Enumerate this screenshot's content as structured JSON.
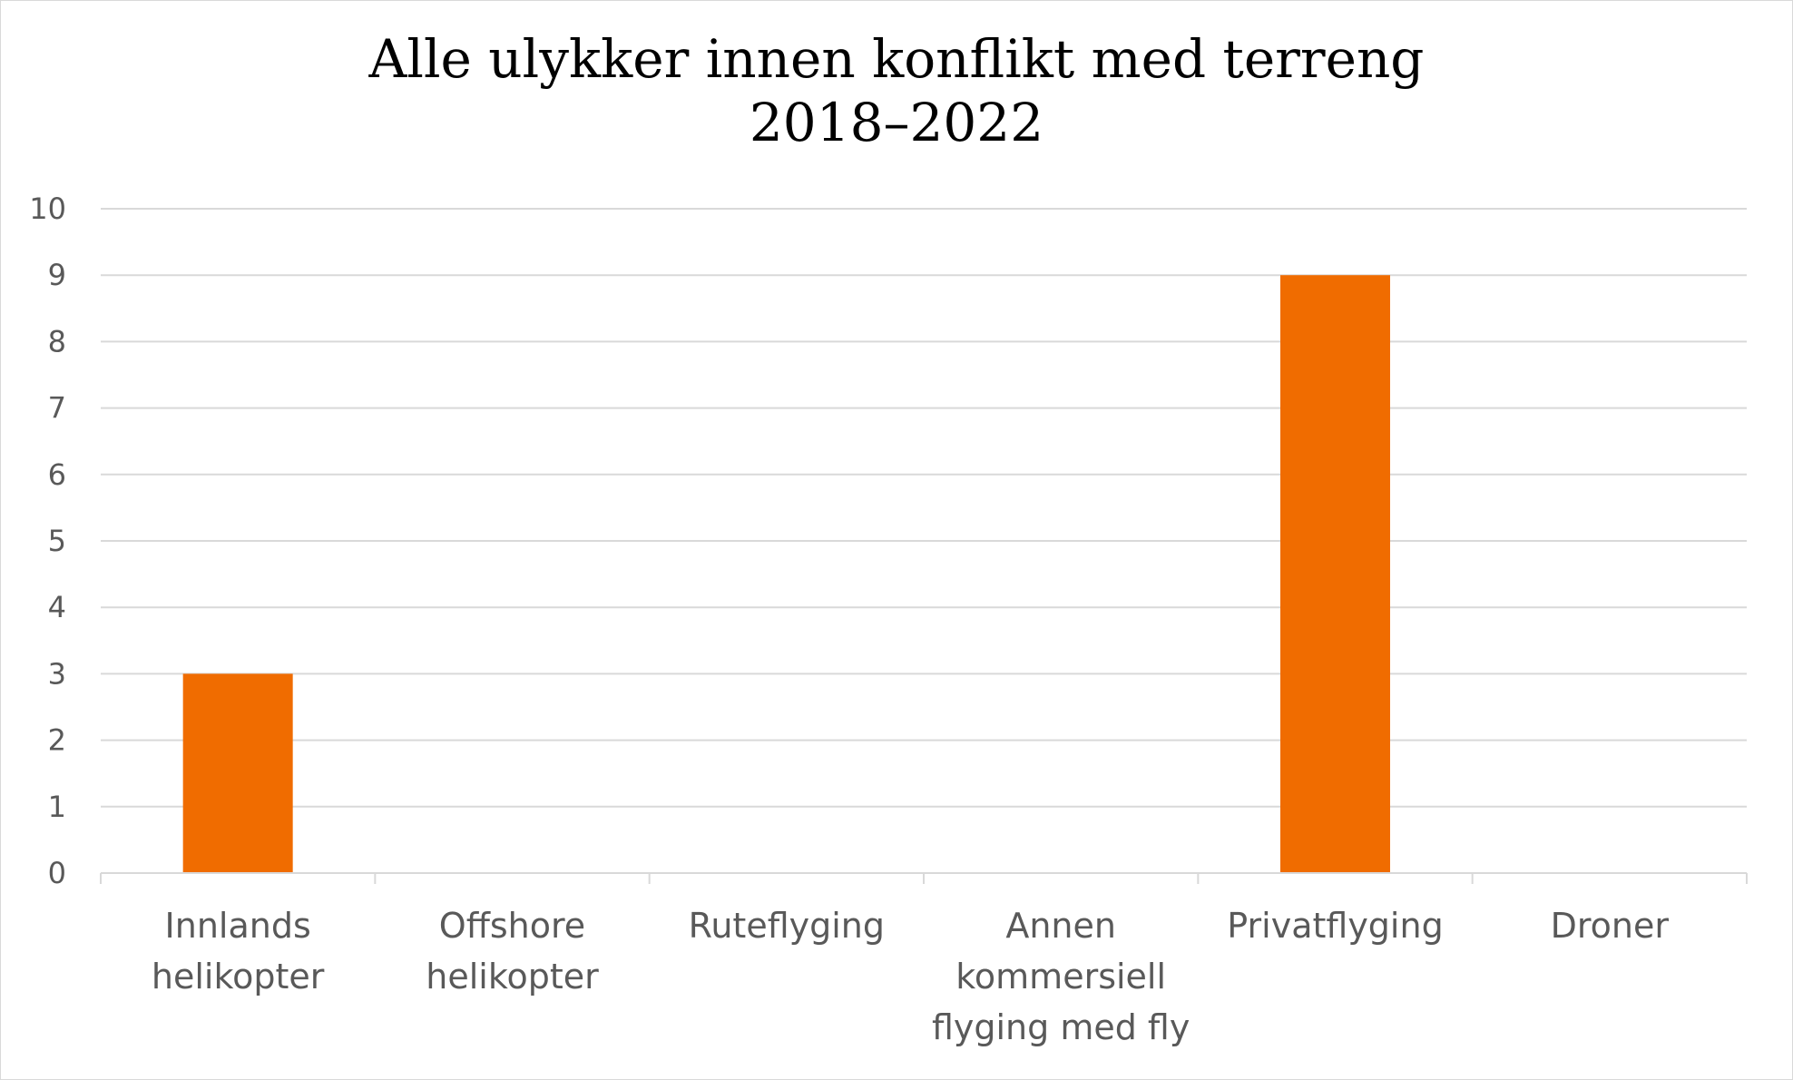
{
  "chart_data": {
    "type": "bar",
    "title": [
      "Alle ulykker innen konflikt med terreng",
      "2018–2022"
    ],
    "categories": [
      [
        "Innlands",
        "helikopter"
      ],
      [
        "Offshore",
        "helikopter"
      ],
      [
        "Ruteflyging"
      ],
      [
        "Annen",
        "kommersiell",
        "flyging med fly"
      ],
      [
        "Privatflyging"
      ],
      [
        "Droner"
      ]
    ],
    "values": [
      3,
      0,
      0,
      0,
      9,
      0
    ],
    "ylim": [
      0,
      10
    ],
    "yticks": [
      0,
      1,
      2,
      3,
      4,
      5,
      6,
      7,
      8,
      9,
      10
    ],
    "grid": true,
    "legend": "none",
    "bar_color": "#F06C00",
    "grid_color": "#d9d9d9",
    "axis_color": "#d9d9d9",
    "label_color": "#595959"
  }
}
